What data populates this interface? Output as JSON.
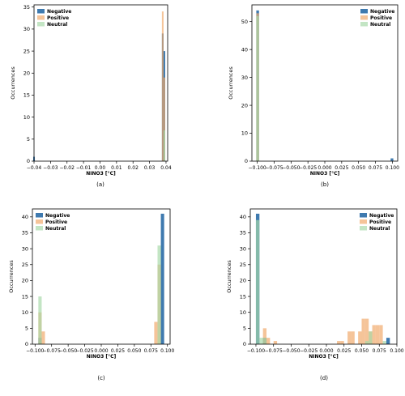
{
  "chart_data": [
    {
      "type": "histogram",
      "caption": "(a)",
      "xlabel": "NINO3 [°C]",
      "ylabel": "Occurrences",
      "xlim": [
        -0.04,
        0.041
      ],
      "ylim": [
        0,
        35.5
      ],
      "xticks": [
        -0.04,
        -0.03,
        -0.02,
        -0.01,
        0.0,
        0.01,
        0.02,
        0.03,
        0.04
      ],
      "xtick_labels": [
        "−0.04",
        "−0.03",
        "−0.02",
        "−0.01",
        "0.00",
        "0.01",
        "0.02",
        "0.03",
        "0.04"
      ],
      "yticks": [
        0,
        5,
        10,
        15,
        20,
        25,
        30,
        35
      ],
      "legend": "top-left",
      "series": [
        {
          "name": "Negative",
          "color": "#2f6fa8",
          "bins": [
            {
              "x0": -0.0405,
              "x1": -0.0395,
              "count": 1
            },
            {
              "x0": 0.0375,
              "x1": 0.0385,
              "count": 29
            },
            {
              "x0": 0.0385,
              "x1": 0.0395,
              "count": 25
            }
          ]
        },
        {
          "name": "Positive",
          "color": "#f0a868",
          "bins": [
            {
              "x0": 0.0375,
              "x1": 0.0385,
              "count": 34
            },
            {
              "x0": 0.0385,
              "x1": 0.0395,
              "count": 19
            }
          ]
        },
        {
          "name": "Neutral",
          "color": "#a6d9a8",
          "bins": [
            {
              "x0": 0.0385,
              "x1": 0.0395,
              "count": 7
            }
          ]
        }
      ]
    },
    {
      "type": "histogram",
      "caption": "(b)",
      "xlabel": "NINO3 [°C]",
      "ylabel": "Occurrences",
      "xlim": [
        -0.108,
        0.108
      ],
      "ylim": [
        0,
        56
      ],
      "xticks": [
        -0.1,
        -0.075,
        -0.05,
        -0.025,
        0.0,
        0.025,
        0.05,
        0.075,
        0.1
      ],
      "xtick_labels": [
        "−0.100",
        "−0.075",
        "−0.050",
        "−0.025",
        "0.000",
        "0.025",
        "0.050",
        "0.075",
        "0.100"
      ],
      "yticks": [
        0,
        10,
        20,
        30,
        40,
        50
      ],
      "legend": "top-right",
      "series": [
        {
          "name": "Negative",
          "color": "#2f6fa8",
          "bins": [
            {
              "x0": -0.1015,
              "x1": -0.0975,
              "count": 54
            },
            {
              "x0": 0.0975,
              "x1": 0.1015,
              "count": 1
            }
          ]
        },
        {
          "name": "Positive",
          "color": "#f0a868",
          "bins": [
            {
              "x0": -0.1015,
              "x1": -0.0975,
              "count": 53
            }
          ]
        },
        {
          "name": "Neutral",
          "color": "#a6d9a8",
          "bins": [
            {
              "x0": -0.1015,
              "x1": -0.0975,
              "count": 52
            }
          ]
        }
      ]
    },
    {
      "type": "histogram",
      "caption": "(c)",
      "xlabel": "NINO3 [°C]",
      "ylabel": "Occurrences",
      "xlim": [
        -0.104,
        0.104
      ],
      "ylim": [
        0,
        42.5
      ],
      "xticks": [
        -0.1,
        -0.075,
        -0.05,
        -0.025,
        0.0,
        0.025,
        0.05,
        0.075,
        0.1
      ],
      "xtick_labels": [
        "−0.100",
        "−0.075",
        "−0.050",
        "−0.025",
        "0.000",
        "0.025",
        "0.050",
        "0.075",
        "0.100"
      ],
      "yticks": [
        0,
        5,
        10,
        15,
        20,
        25,
        30,
        35,
        40
      ],
      "legend": "top-left",
      "series": [
        {
          "name": "Negative",
          "color": "#2f6fa8",
          "bins": [
            {
              "x0": -0.095,
              "x1": -0.09,
              "count": 2
            },
            {
              "x0": 0.09,
              "x1": 0.095,
              "count": 41
            }
          ]
        },
        {
          "name": "Positive",
          "color": "#f0a868",
          "bins": [
            {
              "x0": -0.095,
              "x1": -0.09,
              "count": 10
            },
            {
              "x0": -0.09,
              "x1": -0.085,
              "count": 4
            },
            {
              "x0": 0.08,
              "x1": 0.085,
              "count": 7
            },
            {
              "x0": 0.085,
              "x1": 0.09,
              "count": 25
            }
          ]
        },
        {
          "name": "Neutral",
          "color": "#a6d9a8",
          "bins": [
            {
              "x0": -0.095,
              "x1": -0.09,
              "count": 15
            },
            {
              "x0": 0.085,
              "x1": 0.09,
              "count": 31
            }
          ]
        }
      ]
    },
    {
      "type": "histogram",
      "caption": "(d)",
      "xlabel": "NINO3 [°C]",
      "ylabel": "Occurrences",
      "xlim": [
        -0.108,
        0.1
      ],
      "ylim": [
        0,
        42.5
      ],
      "xticks": [
        -0.1,
        -0.075,
        -0.05,
        -0.025,
        0.0,
        0.025,
        0.05,
        0.075,
        0.1
      ],
      "xtick_labels": [
        "−0.100",
        "−0.075",
        "−0.050",
        "−0.025",
        "0.000",
        "0.025",
        "0.050",
        "0.075",
        "0.100"
      ],
      "yticks": [
        0,
        5,
        10,
        15,
        20,
        25,
        30,
        35,
        40
      ],
      "legend": "top-right",
      "series": [
        {
          "name": "Negative",
          "color": "#2f6fa8",
          "bins": [
            {
              "x0": -0.1,
              "x1": -0.095,
              "count": 41
            },
            {
              "x0": -0.09,
              "x1": -0.085,
              "count": 2
            },
            {
              "x0": 0.085,
              "x1": 0.09,
              "count": 2
            }
          ]
        },
        {
          "name": "Positive",
          "color": "#f0a868",
          "bins": [
            {
              "x0": -0.09,
              "x1": -0.085,
              "count": 5
            },
            {
              "x0": -0.085,
              "x1": -0.08,
              "count": 2
            },
            {
              "x0": -0.075,
              "x1": -0.07,
              "count": 1
            },
            {
              "x0": 0.015,
              "x1": 0.02,
              "count": 1
            },
            {
              "x0": 0.02,
              "x1": 0.025,
              "count": 1
            },
            {
              "x0": 0.03,
              "x1": 0.035,
              "count": 4
            },
            {
              "x0": 0.035,
              "x1": 0.04,
              "count": 4
            },
            {
              "x0": 0.045,
              "x1": 0.05,
              "count": 4
            },
            {
              "x0": 0.05,
              "x1": 0.055,
              "count": 8
            },
            {
              "x0": 0.055,
              "x1": 0.06,
              "count": 8
            },
            {
              "x0": 0.06,
              "x1": 0.065,
              "count": 4
            },
            {
              "x0": 0.065,
              "x1": 0.07,
              "count": 6
            },
            {
              "x0": 0.07,
              "x1": 0.075,
              "count": 6
            },
            {
              "x0": 0.075,
              "x1": 0.08,
              "count": 6
            }
          ]
        },
        {
          "name": "Neutral",
          "color": "#a6d9a8",
          "bins": [
            {
              "x0": -0.1,
              "x1": -0.095,
              "count": 39
            },
            {
              "x0": -0.095,
              "x1": -0.09,
              "count": 2
            },
            {
              "x0": -0.09,
              "x1": -0.085,
              "count": 2
            },
            {
              "x0": 0.055,
              "x1": 0.06,
              "count": 1
            },
            {
              "x0": 0.06,
              "x1": 0.065,
              "count": 4
            },
            {
              "x0": 0.08,
              "x1": 0.085,
              "count": 1
            }
          ]
        }
      ]
    }
  ]
}
